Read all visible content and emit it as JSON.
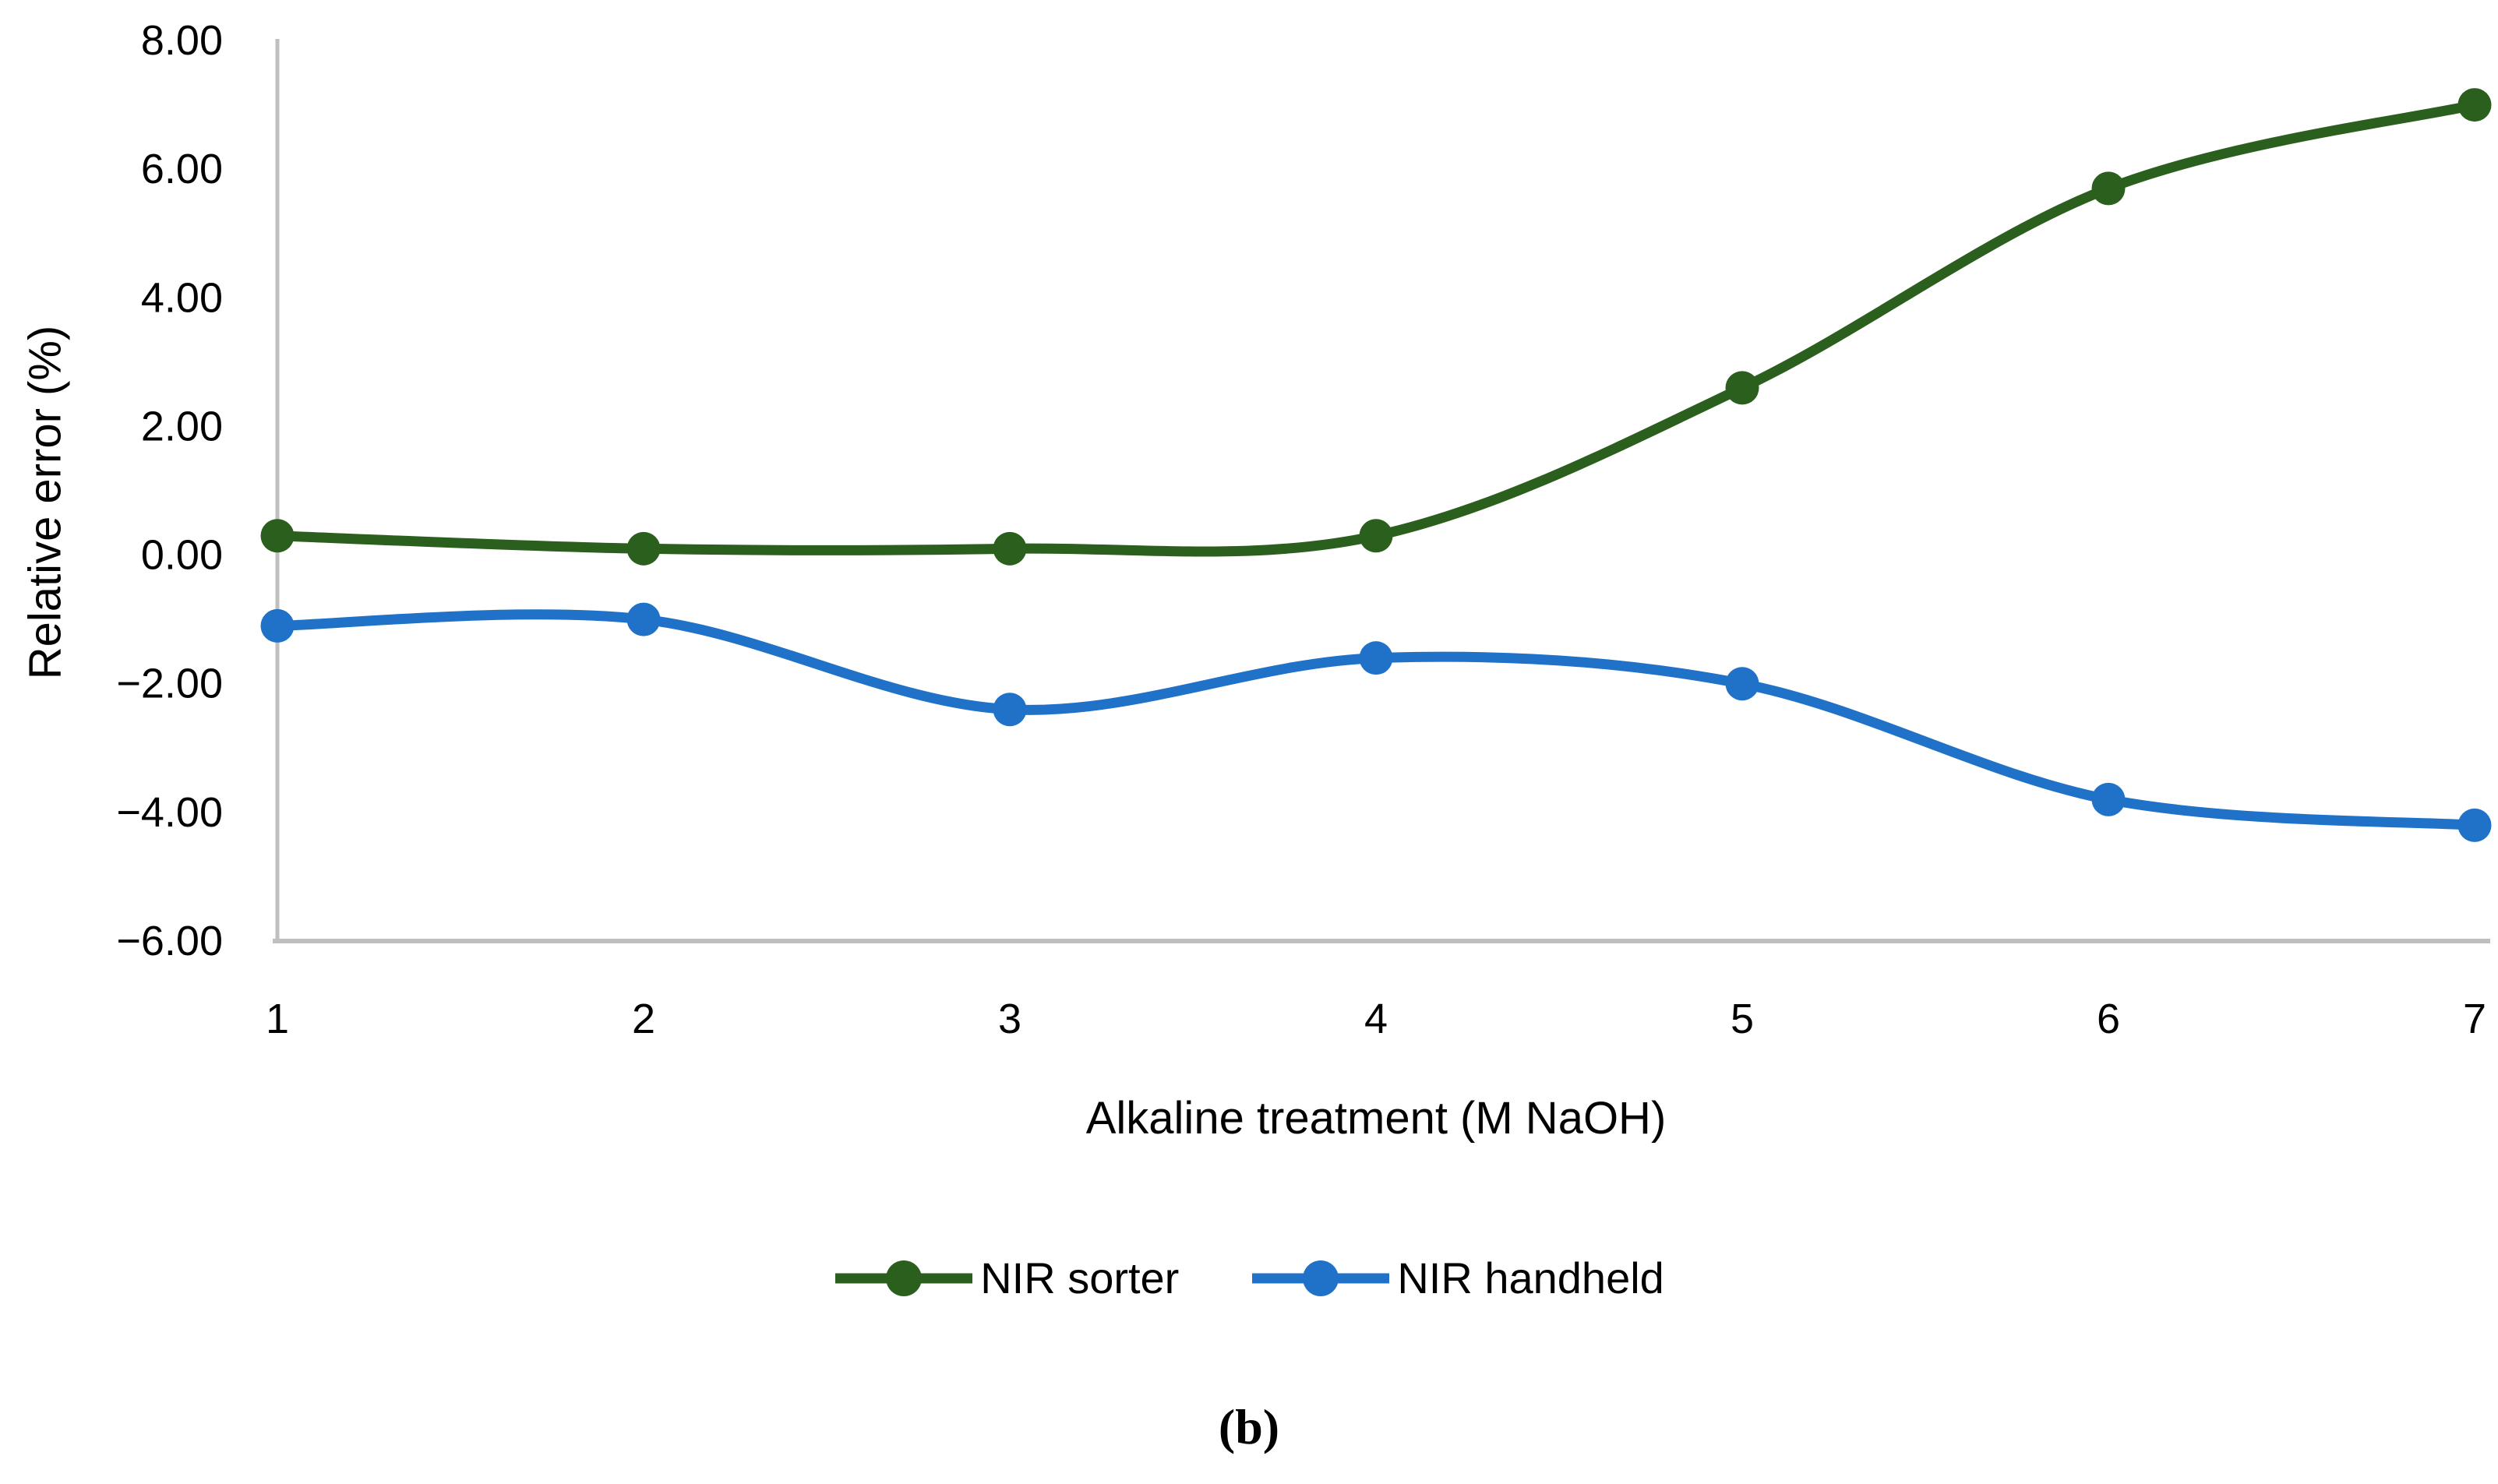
{
  "figure": {
    "caption": "(b)"
  },
  "chart_data": {
    "type": "line",
    "title": "",
    "xlabel": "Alkaline treatment (M NaOH)",
    "ylabel": "Relative error (%)",
    "x": [
      1,
      2,
      3,
      4,
      5,
      6,
      7
    ],
    "x_tick_labels": [
      "1",
      "2",
      "3",
      "4",
      "5",
      "6",
      "7"
    ],
    "xlim": [
      1,
      7
    ],
    "y_ticks": [
      8,
      6,
      4,
      2,
      0,
      -2,
      -4,
      -6
    ],
    "y_tick_labels": [
      "8.00",
      "6.00",
      "4.00",
      "2.00",
      "0.00",
      "−2.00",
      "−4.00",
      "−6.00"
    ],
    "ylim": [
      -6,
      8
    ],
    "grid": false,
    "smooth": true,
    "legend_position": "bottom",
    "axis_color": "#BFBFBF",
    "text_color": "#000000",
    "marker": "circle",
    "series": [
      {
        "name": "NIR sorter",
        "color": "#2B5F1D",
        "values": [
          0.3,
          0.1,
          0.1,
          0.3,
          2.6,
          5.7,
          7.0
        ]
      },
      {
        "name": "NIR handheld",
        "color": "#1F72C8",
        "values": [
          -1.1,
          -1.0,
          -2.4,
          -1.6,
          -2.0,
          -3.8,
          -4.2
        ]
      }
    ]
  }
}
